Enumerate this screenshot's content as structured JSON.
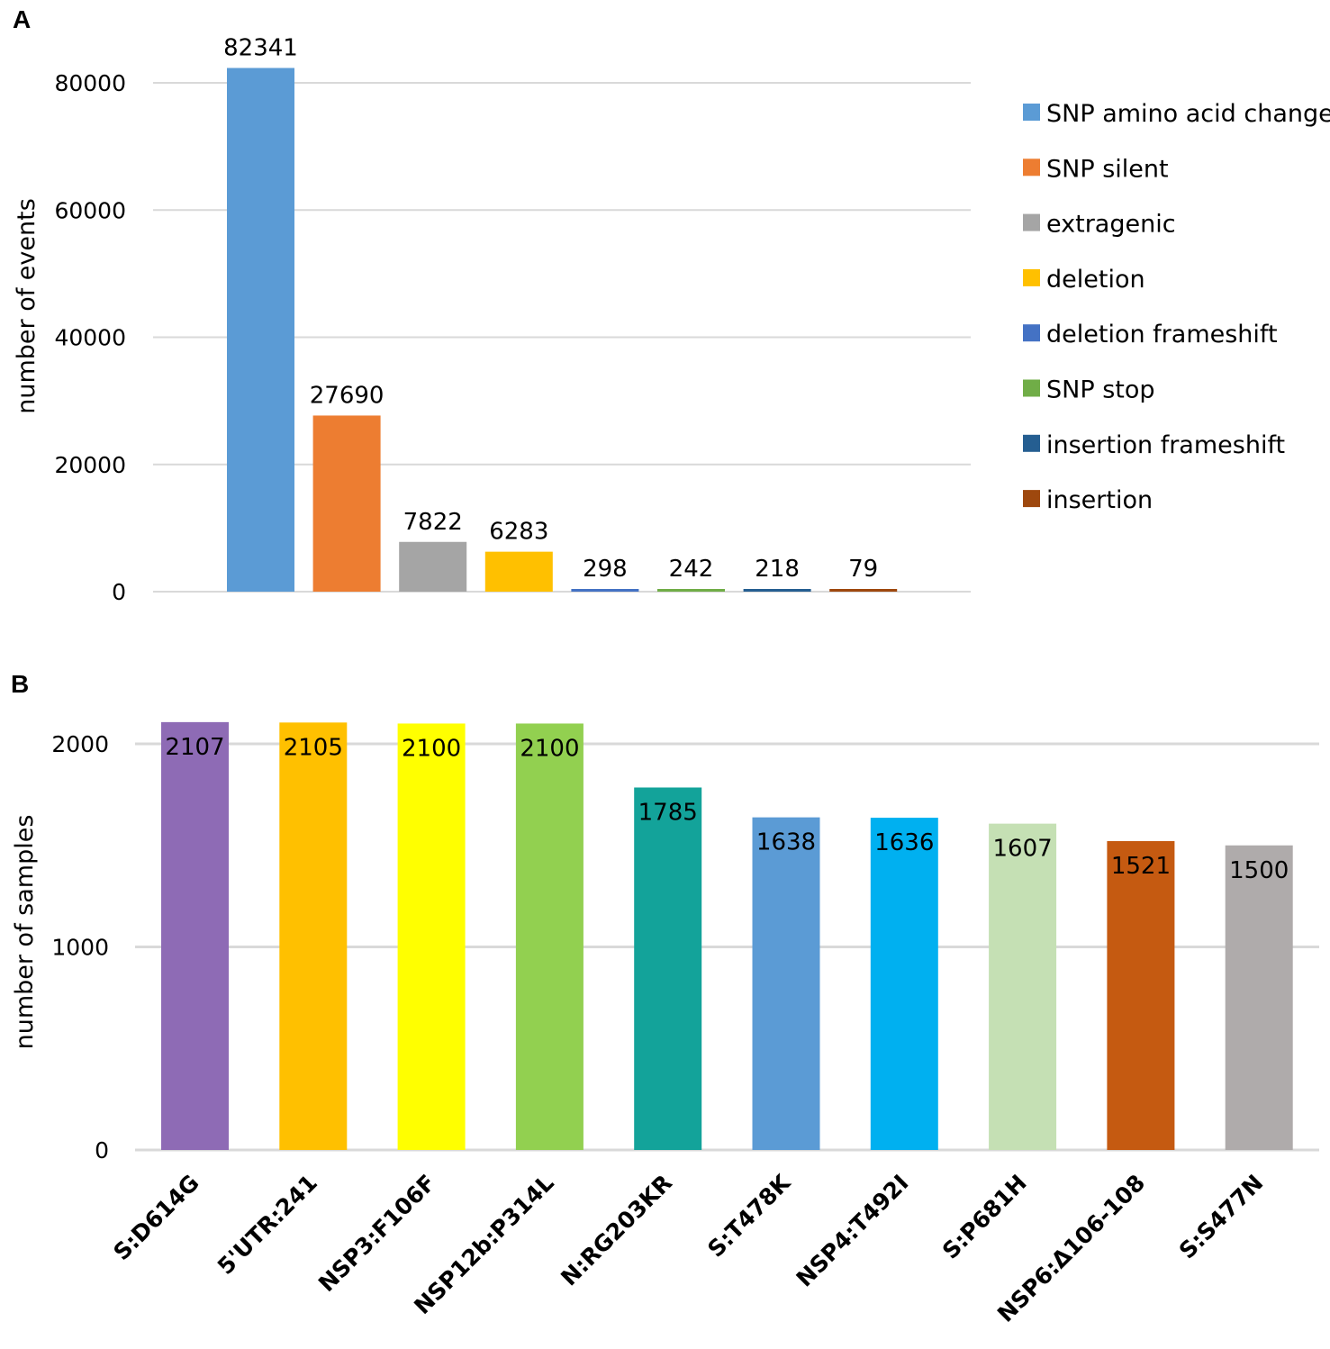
{
  "panels": {
    "a_label": "A",
    "b_label": "B"
  },
  "chart_data": [
    {
      "type": "bar",
      "panel": "A",
      "title": "",
      "xlabel": "",
      "ylabel": "number of events",
      "ylim": [
        0,
        90000
      ],
      "yticks": [
        0,
        20000,
        40000,
        60000,
        80000
      ],
      "grid": true,
      "legend_position": "right",
      "categories": [
        "SNP amino acid change",
        "SNP silent",
        "extragenic",
        "deletion",
        "deletion frameshift",
        "SNP stop",
        "insertion frameshift",
        "insertion"
      ],
      "values": [
        82341,
        27690,
        7822,
        6283,
        298,
        242,
        218,
        79
      ],
      "colors": [
        "#5B9BD5",
        "#ED7D31",
        "#A5A5A5",
        "#FFC000",
        "#4472C4",
        "#70AD47",
        "#255E91",
        "#9E480E"
      ]
    },
    {
      "type": "bar",
      "panel": "B",
      "title": "",
      "xlabel": "",
      "ylabel": "number of samples",
      "ylim": [
        0,
        2200
      ],
      "yticks": [
        0,
        1000,
        2000
      ],
      "grid": true,
      "categories": [
        "S:D614G",
        "5'UTR:241",
        "NSP3:F106F",
        "NSP12b:P314L",
        "N:RG203KR",
        "S:T478K",
        "NSP4:T492I",
        "S:P681H",
        "NSP6:Δ106-108",
        "S:S477N"
      ],
      "values": [
        2107,
        2105,
        2100,
        2100,
        1785,
        1638,
        1636,
        1607,
        1521,
        1500
      ],
      "colors": [
        "#8E6BB5",
        "#FFC000",
        "#FFFF00",
        "#92D050",
        "#13A39A",
        "#5B9BD5",
        "#00B0F0",
        "#C5E0B4",
        "#C55A11",
        "#AFABAB"
      ]
    }
  ]
}
